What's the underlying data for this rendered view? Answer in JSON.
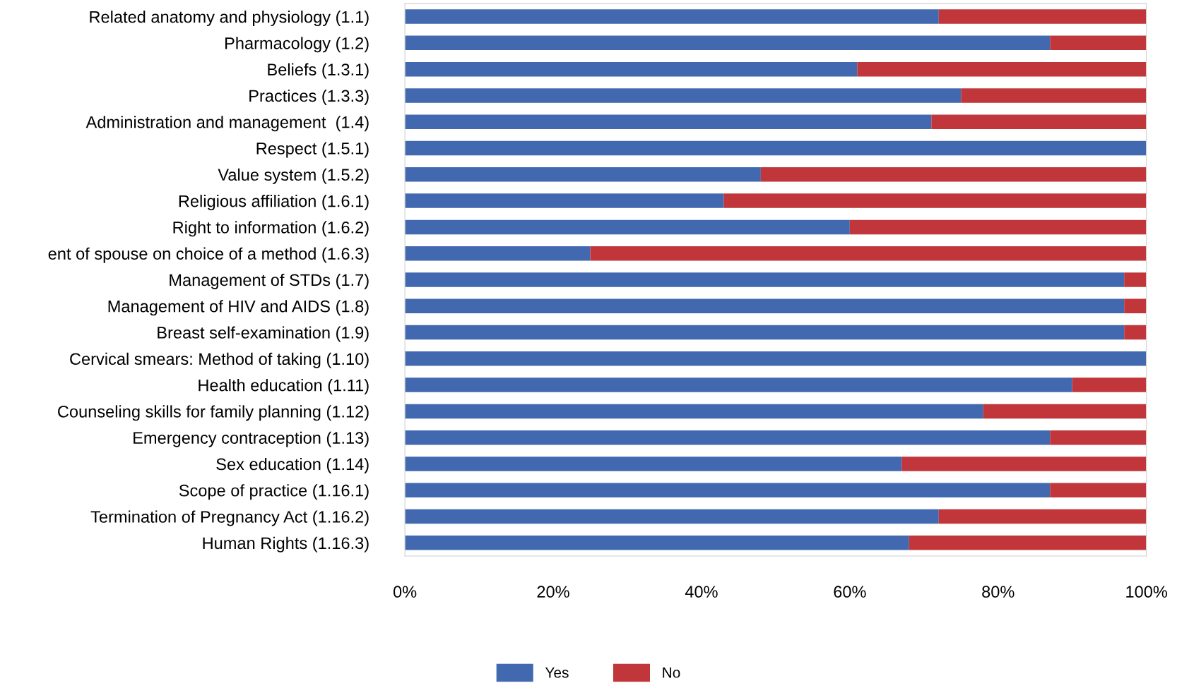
{
  "chart_data": {
    "type": "bar",
    "orientation": "horizontal",
    "stacked": true,
    "categories": [
      "Related anatomy and physiology (1.1)",
      "Pharmacology (1.2)",
      "Beliefs (1.3.1)",
      "Practices (1.3.3)",
      "Administration and management  (1.4)",
      "Respect (1.5.1)",
      "Value system (1.5.2)",
      "Religious affiliation (1.6.1)",
      "Right to information (1.6.2)",
      "ent of spouse on choice of a method (1.6.3)",
      "Management of STDs (1.7)",
      "Management of HIV and AIDS (1.8)",
      "Breast self-examination (1.9)",
      "Cervical smears: Method of taking (1.10)",
      "Health education (1.11)",
      "Counseling skills for family planning (1.12)",
      "Emergency contraception (1.13)",
      "Sex education (1.14)",
      "Scope of practice (1.16.1)",
      "Termination of Pregnancy Act (1.16.2)",
      "Human Rights (1.16.3)"
    ],
    "series": [
      {
        "name": "Yes",
        "color": "#4269b0",
        "values": [
          72,
          87,
          61,
          75,
          71,
          100,
          48,
          43,
          60,
          25,
          97,
          97,
          97,
          100,
          90,
          78,
          87,
          67,
          87,
          72,
          68
        ]
      },
      {
        "name": "No",
        "color": "#c0363a",
        "values": [
          28,
          13,
          39,
          25,
          29,
          0,
          52,
          57,
          40,
          75,
          3,
          3,
          3,
          0,
          10,
          22,
          13,
          33,
          13,
          28,
          32
        ]
      }
    ],
    "xlim": [
      0,
      100
    ],
    "xticks": [
      {
        "value": 0,
        "label": "0%"
      },
      {
        "value": 20,
        "label": "20%"
      },
      {
        "value": 40,
        "label": "40%"
      },
      {
        "value": 60,
        "label": "60%"
      },
      {
        "value": 80,
        "label": "80%"
      },
      {
        "value": 100,
        "label": "100%"
      }
    ],
    "legend": "bottom",
    "grid": false
  }
}
